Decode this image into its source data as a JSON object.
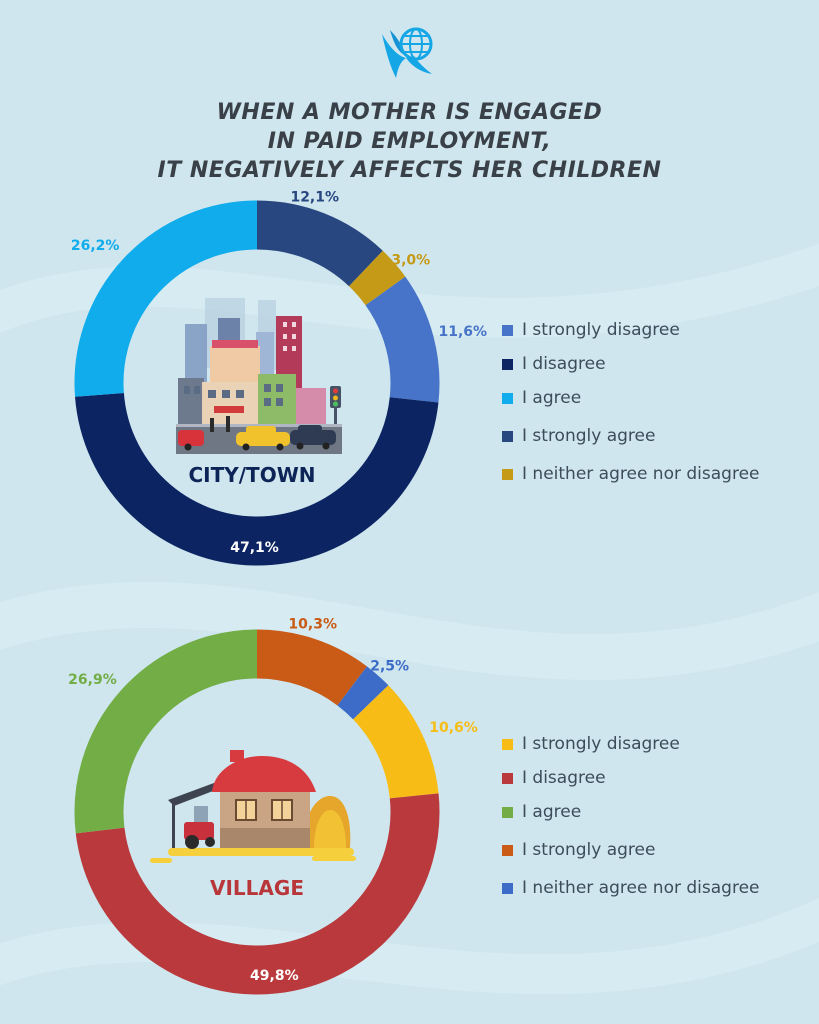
{
  "title_lines": [
    "WHEN A MOTHER IS ENGAGED",
    "IN PAID EMPLOYMENT,",
    "IT NEGATIVELY AFFECTS HER CHILDREN"
  ],
  "logo_icon": "globe-eagle-icon",
  "chart_data": [
    {
      "type": "pie",
      "center_label": "CITY/TOWN",
      "center_label_color": "#0d2457",
      "illustration_icon": "city-illustration-icon",
      "slices": [
        {
          "label": "I strongly agree",
          "value": 12.1,
          "display": "12,1%",
          "color": "#28467f"
        },
        {
          "label": "I neither agree nor disagree",
          "value": 3.0,
          "display": "3,0%",
          "color": "#c59a17"
        },
        {
          "label": "I strongly disagree",
          "value": 11.6,
          "display": "11,6%",
          "color": "#4774c8"
        },
        {
          "label": "I disagree",
          "value": 47.1,
          "display": "47,1%",
          "color": "#0c2461"
        },
        {
          "label": "I agree",
          "value": 26.2,
          "display": "26,2%",
          "color": "#10acec"
        }
      ],
      "legend": [
        {
          "label": "I strongly disagree",
          "color": "#4774c8"
        },
        {
          "label": "I disagree",
          "color": "#0c2461"
        },
        {
          "label": "I agree",
          "color": "#10acec"
        },
        {
          "label": "I strongly agree",
          "color": "#28467f"
        },
        {
          "label": "I neither agree nor disagree",
          "color": "#c59a17"
        }
      ]
    },
    {
      "type": "pie",
      "center_label": "VILLAGE",
      "center_label_color": "#b8353a",
      "illustration_icon": "village-illustration-icon",
      "slices": [
        {
          "label": "I strongly agree",
          "value": 10.3,
          "display": "10,3%",
          "color": "#c95b17"
        },
        {
          "label": "I neither agree nor disagree",
          "value": 2.5,
          "display": "2,5%",
          "color": "#3d6cc8"
        },
        {
          "label": "I strongly disagree",
          "value": 10.6,
          "display": "10,6%",
          "color": "#f7bd16"
        },
        {
          "label": "I disagree",
          "value": 49.8,
          "display": "49,8%",
          "color": "#ba393c"
        },
        {
          "label": "I agree",
          "value": 26.9,
          "display": "26,9%",
          "color": "#72ad46"
        }
      ],
      "legend": [
        {
          "label": "I strongly disagree",
          "color": "#f7bd16"
        },
        {
          "label": "I disagree",
          "color": "#ba393c"
        },
        {
          "label": "I agree",
          "color": "#72ad46"
        },
        {
          "label": "I strongly agree",
          "color": "#c95b17"
        },
        {
          "label": "I neither agree nor disagree",
          "color": "#3d6cc8"
        }
      ]
    }
  ]
}
